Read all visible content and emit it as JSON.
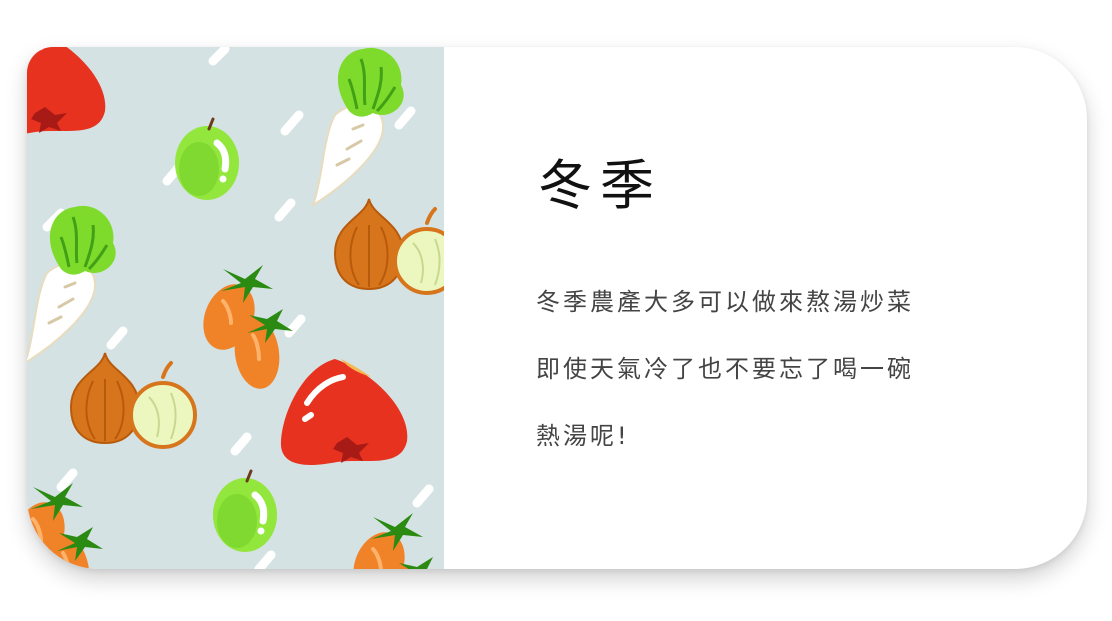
{
  "card": {
    "title": "冬季",
    "description_lines": [
      "冬季農產大多可以做來熬湯炒菜",
      "即使天氣冷了也不要忘了喝一碗",
      "熱湯呢!"
    ]
  },
  "illustration": {
    "items": [
      "wax-apple",
      "green-guava",
      "white-radish",
      "orange-onion",
      "cherry-tomato"
    ]
  },
  "colors": {
    "illustration_background": "#d4e2e3",
    "title_text": "#111111",
    "body_text": "#444444",
    "card_background": "#ffffff"
  }
}
